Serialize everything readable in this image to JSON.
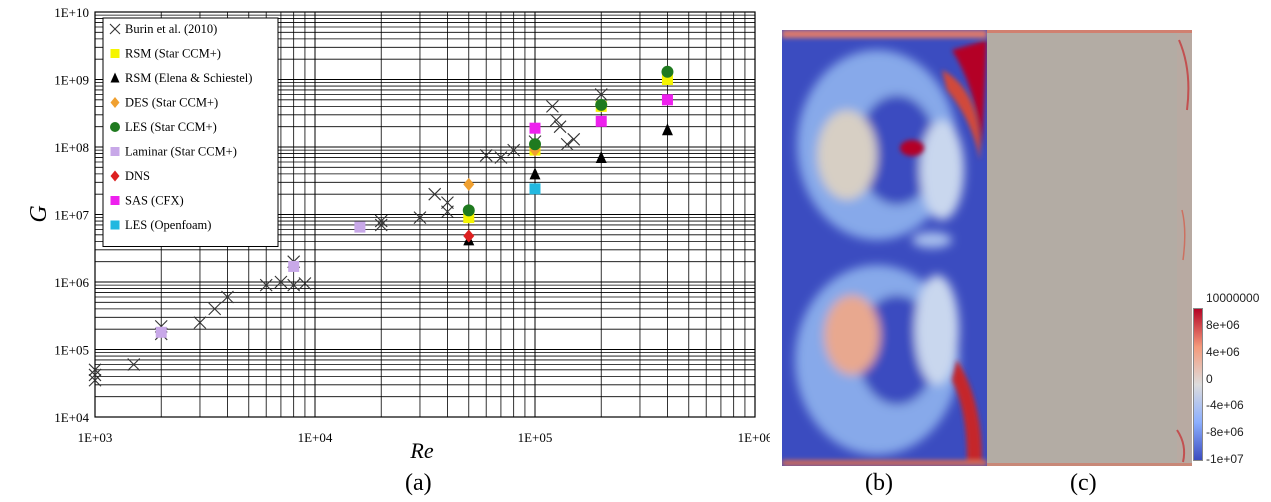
{
  "chart_data": {
    "type": "scatter",
    "xscale": "log",
    "yscale": "log",
    "xlim": [
      1000,
      1000000
    ],
    "ylim": [
      10000,
      10000000000
    ],
    "xlabel": "Re",
    "ylabel": "G",
    "xticks": [
      "1E+03",
      "1E+04",
      "1E+05",
      "1E+06"
    ],
    "yticks": [
      "1E+04",
      "1E+05",
      "1E+06",
      "1E+07",
      "1E+08",
      "1E+09",
      "1E+10"
    ],
    "grid": true,
    "legend_position": "top-left",
    "series": [
      {
        "name": "Burin et al. (2010)",
        "marker": "x",
        "color": "#333333",
        "points": [
          [
            1000,
            35000
          ],
          [
            1000,
            42000
          ],
          [
            1000,
            50000
          ],
          [
            1500,
            60000
          ],
          [
            2000,
            170000
          ],
          [
            2000,
            220000
          ],
          [
            3000,
            250000
          ],
          [
            3500,
            400000
          ],
          [
            4000,
            600000
          ],
          [
            6000,
            900000
          ],
          [
            7000,
            1000000
          ],
          [
            8000,
            900000
          ],
          [
            8000,
            2000000
          ],
          [
            9000,
            950000
          ],
          [
            20000,
            7000000
          ],
          [
            20000,
            8000000
          ],
          [
            30000,
            9000000
          ],
          [
            35000,
            20000000
          ],
          [
            40000,
            15000000
          ],
          [
            40000,
            11000000
          ],
          [
            60000,
            75000000
          ],
          [
            70000,
            70000000
          ],
          [
            80000,
            90000000
          ],
          [
            100000,
            120000000
          ],
          [
            120000,
            400000000
          ],
          [
            125000,
            250000000
          ],
          [
            130000,
            200000000
          ],
          [
            140000,
            110000000
          ],
          [
            150000,
            130000000
          ],
          [
            200000,
            600000000
          ]
        ]
      },
      {
        "name": "RSM (Star CCM+)",
        "marker": "square",
        "color": "#f5f500",
        "points": [
          [
            50000,
            9000000
          ],
          [
            100000,
            90000000
          ],
          [
            200000,
            400000000
          ],
          [
            400000,
            1000000000
          ]
        ]
      },
      {
        "name": "RSM (Elena & Schiestel)",
        "marker": "triangle",
        "color": "#000000",
        "points": [
          [
            50000,
            4200000
          ],
          [
            100000,
            40000000
          ],
          [
            200000,
            70000000
          ],
          [
            400000,
            180000000
          ]
        ]
      },
      {
        "name": "DES (Star CCM+)",
        "marker": "diamond",
        "color": "#f0a030",
        "points": [
          [
            50000,
            28000000
          ],
          [
            100000,
            90000000
          ]
        ]
      },
      {
        "name": "LES (Star CCM+)",
        "marker": "circle",
        "color": "#1f7a1f",
        "points": [
          [
            50000,
            11500000
          ],
          [
            100000,
            110000000
          ],
          [
            200000,
            420000000
          ],
          [
            400000,
            1300000000
          ]
        ]
      },
      {
        "name": "Laminar (Star CCM+)",
        "marker": "square",
        "color": "#c8a8e8",
        "points": [
          [
            2000,
            180000
          ],
          [
            8000,
            1700000
          ],
          [
            16000,
            6500000
          ]
        ]
      },
      {
        "name": "DNS",
        "marker": "diamond",
        "color": "#dd2020",
        "points": [
          [
            50000,
            4800000
          ]
        ]
      },
      {
        "name": "SAS (CFX)",
        "marker": "square",
        "color": "#ee20ee",
        "points": [
          [
            100000,
            190000000
          ],
          [
            200000,
            240000000
          ],
          [
            400000,
            500000000
          ]
        ]
      },
      {
        "name": "LES (Openfoam)",
        "marker": "square",
        "color": "#22b8e0",
        "points": [
          [
            100000,
            24000000
          ]
        ]
      }
    ]
  },
  "panels": {
    "a": "(a)",
    "b": "(b)",
    "c": "(c)"
  },
  "colorbar": {
    "labels": [
      "10000000",
      "8e+06",
      "4e+06",
      "0",
      "-4e+06",
      "-8e+06",
      "-1e+07"
    ],
    "colors": [
      "#b40426",
      "#f49a7b",
      "#dddcdc",
      "#8caffe",
      "#3b4cc0"
    ]
  },
  "field_colors": {
    "background": "#3b4cc0",
    "plain": "#b3aca4",
    "hot": "#b40426"
  }
}
